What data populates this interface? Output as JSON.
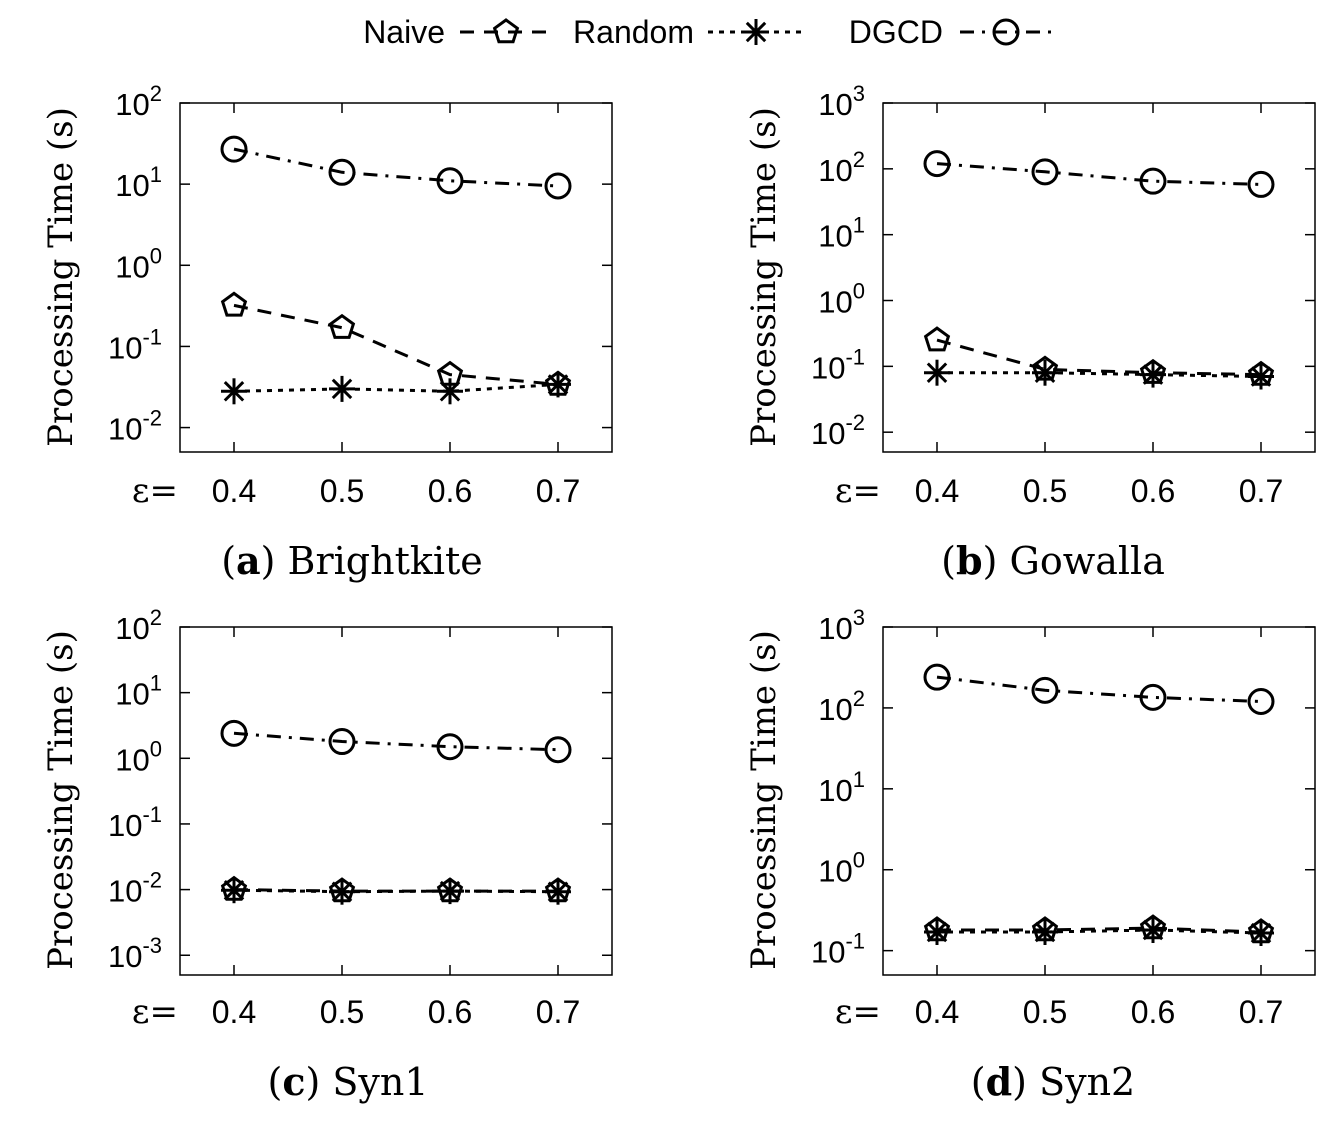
{
  "legend": {
    "entries": [
      {
        "label": "Naive",
        "marker": "pentagon-icon",
        "dash": "long-dash"
      },
      {
        "label": "Random",
        "marker": "asterisk-icon",
        "dash": "dot"
      },
      {
        "label": "DGCD",
        "marker": "circle-icon",
        "dash": "dash-dot"
      }
    ]
  },
  "eps_label": "ε=",
  "chart_data": [
    {
      "type": "line",
      "subcaption_letter": "a",
      "subcaption_name": "Brightkite",
      "ylabel": "Processing Time (s)",
      "yscale": "log",
      "ylim": [
        0.005,
        100
      ],
      "ytick_exponents": [
        "2",
        "1",
        "0",
        "-1",
        "-2"
      ],
      "ytick_base": "10",
      "x": [
        "0.4",
        "0.5",
        "0.6",
        "0.7"
      ],
      "series": [
        {
          "name": "Naive",
          "values": [
            0.32,
            0.17,
            0.045,
            0.034
          ]
        },
        {
          "name": "Random",
          "values": [
            0.028,
            0.03,
            0.028,
            0.034
          ]
        },
        {
          "name": "DGCD",
          "values": [
            27,
            14,
            11,
            9.5
          ]
        }
      ]
    },
    {
      "type": "line",
      "subcaption_letter": "b",
      "subcaption_name": "Gowalla",
      "ylabel": "Processing Time (s)",
      "yscale": "log",
      "ylim": [
        0.005,
        1000
      ],
      "ytick_exponents": [
        "3",
        "2",
        "1",
        "0",
        "-1",
        "-2"
      ],
      "ytick_base": "10",
      "x": [
        "0.4",
        "0.5",
        "0.6",
        "0.7"
      ],
      "series": [
        {
          "name": "Naive",
          "values": [
            0.25,
            0.09,
            0.08,
            0.075
          ]
        },
        {
          "name": "Random",
          "values": [
            0.08,
            0.08,
            0.075,
            0.07
          ]
        },
        {
          "name": "DGCD",
          "values": [
            120,
            90,
            65,
            58
          ]
        }
      ]
    },
    {
      "type": "line",
      "subcaption_letter": "c",
      "subcaption_name": "Syn1",
      "ylabel": "Processing Time (s)",
      "yscale": "log",
      "ylim": [
        0.0005,
        100
      ],
      "ytick_exponents": [
        "2",
        "1",
        "0",
        "-1",
        "-2",
        "-3"
      ],
      "ytick_base": "10",
      "x": [
        "0.4",
        "0.5",
        "0.6",
        "0.7"
      ],
      "series": [
        {
          "name": "Naive",
          "values": [
            0.01,
            0.0095,
            0.0095,
            0.0095
          ]
        },
        {
          "name": "Random",
          "values": [
            0.0098,
            0.0093,
            0.0095,
            0.0093
          ]
        },
        {
          "name": "DGCD",
          "values": [
            2.4,
            1.8,
            1.5,
            1.35
          ]
        }
      ]
    },
    {
      "type": "line",
      "subcaption_letter": "d",
      "subcaption_name": "Syn2",
      "ylabel": "Processing Time (s)",
      "yscale": "log",
      "ylim": [
        0.05,
        1000
      ],
      "ytick_exponents": [
        "3",
        "2",
        "1",
        "0",
        "-1"
      ],
      "ytick_base": "10",
      "x": [
        "0.4",
        "0.5",
        "0.6",
        "0.7"
      ],
      "series": [
        {
          "name": "Naive",
          "values": [
            0.18,
            0.18,
            0.19,
            0.17
          ]
        },
        {
          "name": "Random",
          "values": [
            0.17,
            0.17,
            0.18,
            0.165
          ]
        },
        {
          "name": "DGCD",
          "values": [
            240,
            165,
            135,
            120
          ]
        }
      ]
    }
  ]
}
